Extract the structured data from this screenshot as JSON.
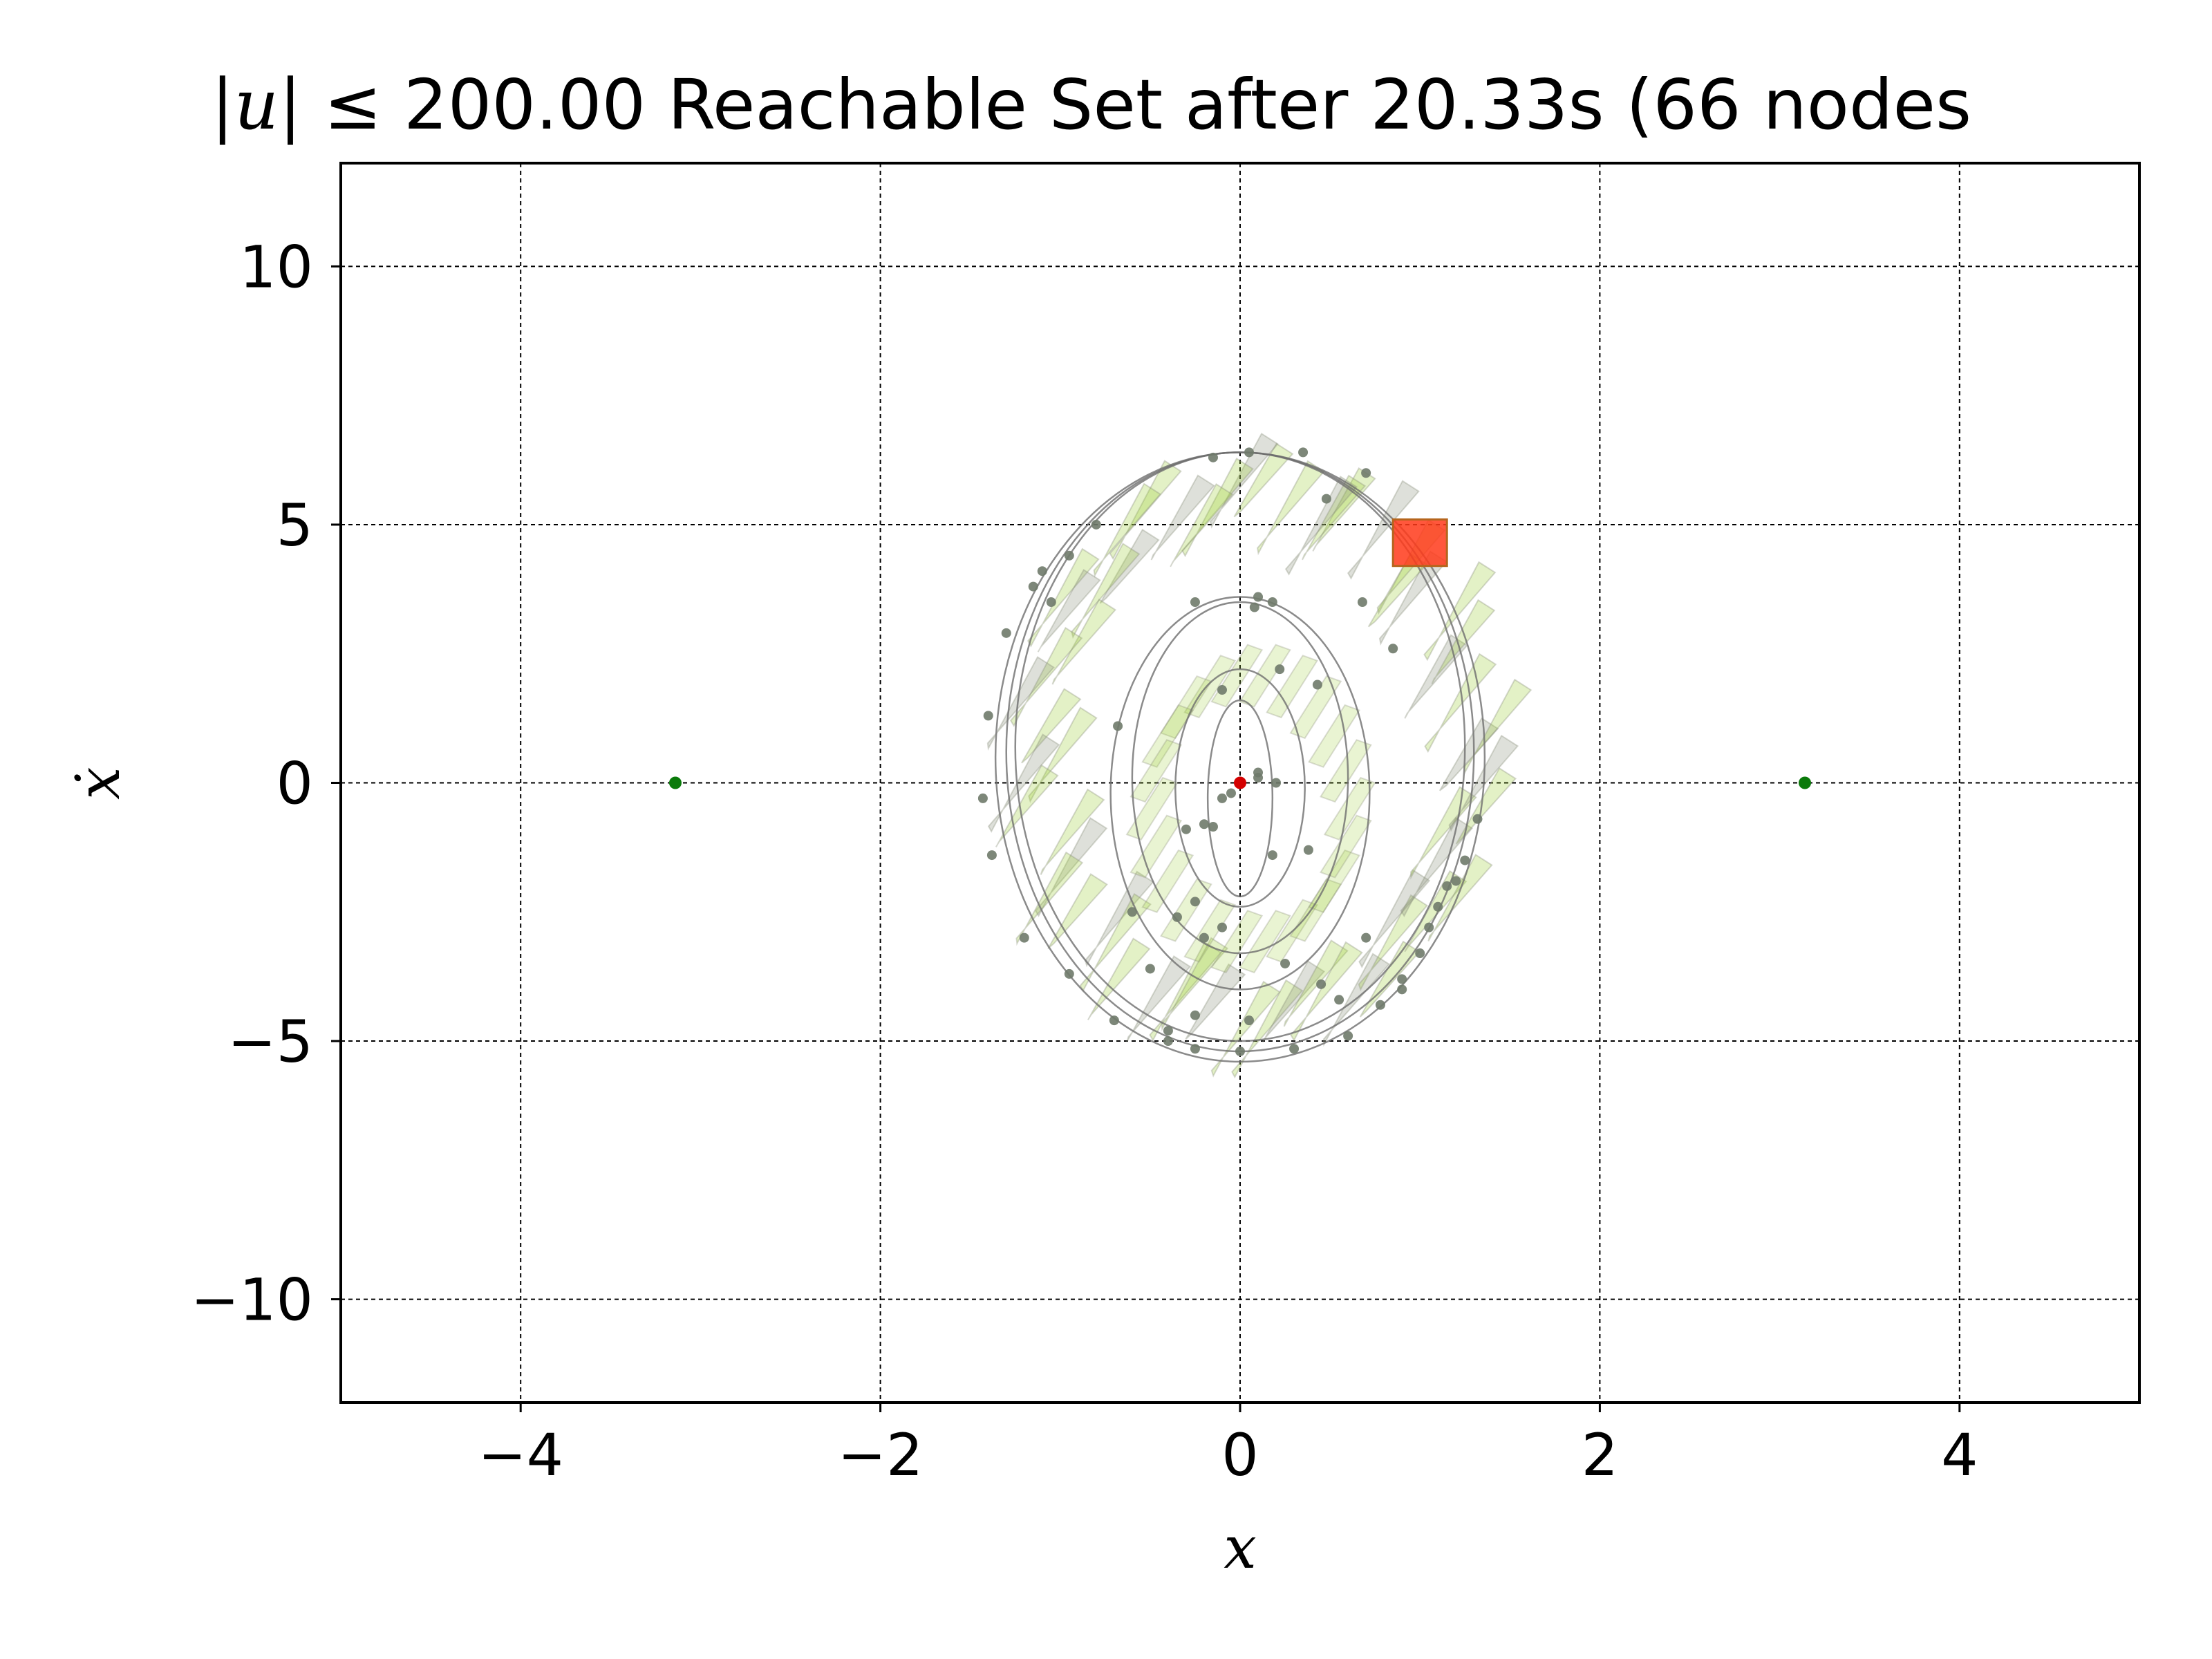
{
  "chart_data": {
    "type": "scatter",
    "title_prefix": "|u|",
    "title_rest": " ≤ 200.00 Reachable Set after 20.33s (66 nodes",
    "xlabel": "x",
    "ylabel": "ẋ",
    "xlim": [
      -5,
      5
    ],
    "ylim": [
      -12,
      12
    ],
    "x_ticks": [
      {
        "value": -4,
        "label": "−4"
      },
      {
        "value": -2,
        "label": "−2"
      },
      {
        "value": 0,
        "label": "0"
      },
      {
        "value": 2,
        "label": "2"
      },
      {
        "value": 4,
        "label": "4"
      }
    ],
    "y_ticks": [
      {
        "value": 10,
        "label": "10"
      },
      {
        "value": 5,
        "label": "5"
      },
      {
        "value": 0,
        "label": "0"
      },
      {
        "value": -5,
        "label": "−5"
      },
      {
        "value": -10,
        "label": "−10"
      }
    ],
    "grid": true,
    "goal_points": [
      {
        "x": -3.14,
        "y": 0,
        "color": "#0a7a0a"
      },
      {
        "x": 3.14,
        "y": 0,
        "color": "#0a7a0a"
      }
    ],
    "start_point": {
      "x": 0,
      "y": 0,
      "color": "#d40000"
    },
    "target_region": {
      "x": [
        0.85,
        1.15
      ],
      "y": [
        4.2,
        5.1
      ],
      "color": "#ff3a1a"
    },
    "colors": {
      "reachable_fill": "#9acd32",
      "reachable_shadow": "#8a8f7a",
      "trajectory": "#6e6e6e",
      "node": "#6f7a6a"
    },
    "nodes": [
      [
        0,
        0
      ],
      [
        0.1,
        0.2
      ],
      [
        -0.1,
        -0.3
      ],
      [
        0.2,
        0.0
      ],
      [
        -0.2,
        -0.8
      ],
      [
        -0.3,
        -0.9
      ],
      [
        -0.15,
        -0.85
      ],
      [
        0.08,
        3.4
      ],
      [
        -0.25,
        3.5
      ],
      [
        0.1,
        3.6
      ],
      [
        -0.1,
        1.8
      ],
      [
        0.22,
        2.2
      ],
      [
        0.43,
        1.9
      ],
      [
        -0.68,
        1.1
      ],
      [
        0.18,
        -1.4
      ],
      [
        0.38,
        -1.3
      ],
      [
        -0.25,
        -2.3
      ],
      [
        -0.35,
        -2.6
      ],
      [
        -0.5,
        -3.6
      ],
      [
        0.25,
        -3.5
      ],
      [
        0.45,
        -3.9
      ],
      [
        -0.25,
        -4.5
      ],
      [
        -0.6,
        -2.5
      ],
      [
        0.05,
        6.4
      ],
      [
        -0.15,
        6.3
      ],
      [
        0.35,
        6.4
      ],
      [
        0.7,
        6.0
      ],
      [
        0.48,
        5.5
      ],
      [
        -1.1,
        4.1
      ],
      [
        -1.05,
        3.5
      ],
      [
        -1.3,
        2.9
      ],
      [
        -1.4,
        1.3
      ],
      [
        -1.43,
        -0.3
      ],
      [
        -1.38,
        -1.4
      ],
      [
        -1.2,
        -3.0
      ],
      [
        -0.95,
        -3.7
      ],
      [
        -0.7,
        -4.6
      ],
      [
        -0.4,
        -5.0
      ],
      [
        -0.25,
        -5.15
      ],
      [
        0.0,
        -5.2
      ],
      [
        0.3,
        -5.15
      ],
      [
        0.6,
        -4.9
      ],
      [
        0.78,
        -4.3
      ],
      [
        0.9,
        -3.8
      ],
      [
        1.0,
        -3.3
      ],
      [
        1.05,
        -2.8
      ],
      [
        1.1,
        -2.4
      ],
      [
        1.2,
        -1.9
      ],
      [
        1.25,
        -1.5
      ],
      [
        1.32,
        -0.7
      ],
      [
        0.85,
        2.6
      ],
      [
        0.68,
        3.5
      ],
      [
        -0.1,
        -2.8
      ],
      [
        -0.2,
        -3.0
      ],
      [
        0.18,
        3.5
      ],
      [
        -0.8,
        5.0
      ],
      [
        -0.95,
        4.4
      ],
      [
        -1.15,
        3.8
      ],
      [
        -0.05,
        -0.2
      ],
      [
        0.1,
        0.1
      ],
      [
        0.05,
        -4.6
      ],
      [
        -0.4,
        -4.8
      ],
      [
        0.55,
        -4.2
      ],
      [
        0.7,
        -3.0
      ],
      [
        0.9,
        -4.0
      ],
      [
        1.15,
        -2.0
      ]
    ]
  }
}
